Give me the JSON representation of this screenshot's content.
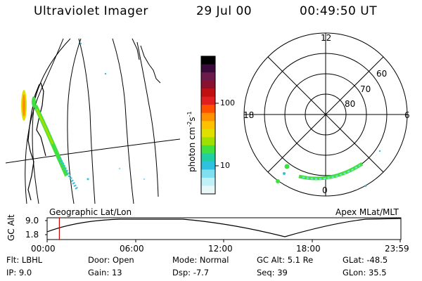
{
  "header": {
    "instrument": "Ultraviolet Imager",
    "date": "29 Jul 00",
    "time": "00:49:50 UT"
  },
  "left_panel": {
    "caption": "Geographic Lat/Lon"
  },
  "right_panel": {
    "caption": "Apex MLat/MLT",
    "mlt_labels": [
      "12",
      "18",
      "6",
      "0"
    ],
    "mlat_labels": [
      "60",
      "70",
      "80"
    ]
  },
  "colorbar": {
    "unit_label_main": "photon cm",
    "unit_label_exp1": "-2",
    "unit_label_main2": "s",
    "unit_label_exp2": "-1",
    "tick_labels": [
      "100",
      "10"
    ],
    "colors": [
      "#000000",
      "#3a0a3a",
      "#6b1a4a",
      "#8a1030",
      "#c01010",
      "#e02020",
      "#ff5000",
      "#ff9000",
      "#ffc000",
      "#e0e000",
      "#a0e000",
      "#40e040",
      "#20d0a0",
      "#30c0e0",
      "#80e0f0",
      "#c0f0f8",
      "#e8f8f8"
    ]
  },
  "timeline": {
    "axis_label": "GC Alt",
    "ytick_top": "9.0",
    "ytick_bottom": "1.8",
    "xtick_labels": [
      "00:00",
      "06:00",
      "12:00",
      "18:00",
      "23:59"
    ],
    "marker_time": "00:49:50",
    "marker_color": "#cc0000"
  },
  "info": {
    "flt_label": "Flt:",
    "flt_value": "LBHL",
    "ip_label": "IP:",
    "ip_value": "9.0",
    "door_label": "Door:",
    "door_value": "Open",
    "gain_label": "Gain:",
    "gain_value": "13",
    "mode_label": "Mode:",
    "mode_value": "Normal",
    "dsp_label": "Dsp:",
    "dsp_value": "-7.7",
    "gcalt_label": "GC Alt:",
    "gcalt_value": "5.1 Re",
    "seq_label": "Seq:",
    "seq_value": "39",
    "glat_label": "GLat:",
    "glat_value": "-48.5",
    "glon_label": "GLon:",
    "glon_value": "35.5"
  }
}
